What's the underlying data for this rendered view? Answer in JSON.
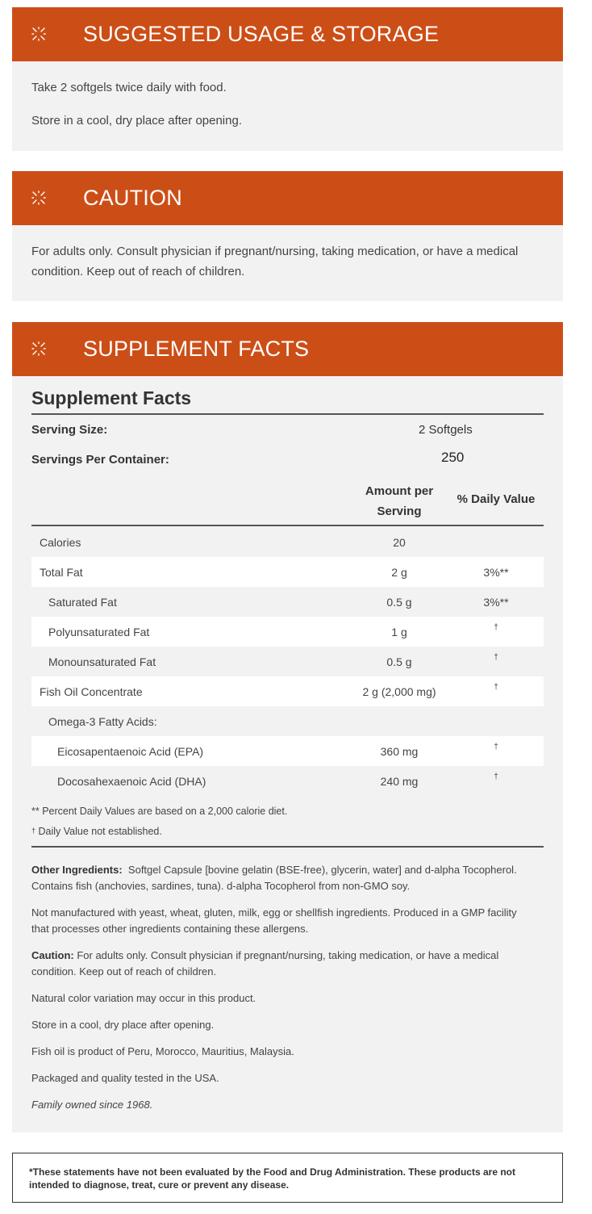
{
  "usage": {
    "title": "SUGGESTED USAGE & STORAGE",
    "icon": "sparkle-icon",
    "lines": [
      "Take 2 softgels twice daily with food.",
      "Store in a cool, dry place after opening."
    ]
  },
  "caution": {
    "title": "CAUTION",
    "icon": "sparkle-icon",
    "text": "For adults only. Consult physician if pregnant/nursing, taking medication, or have a medical condition. Keep out of reach of children."
  },
  "facts": {
    "title": "SUPPLEMENT FACTS",
    "icon": "sparkle-icon",
    "heading": "Supplement Facts",
    "serving_size_label": "Serving Size:",
    "serving_size_value": "2 Softgels",
    "servings_label": "Servings Per Container:",
    "servings_value": "250",
    "col_amount_line1": "Amount per",
    "col_amount_line2": "Serving",
    "col_dv": "% Daily Value",
    "rows": [
      {
        "name": "Calories",
        "amount": "20",
        "dv": "",
        "indent": 0
      },
      {
        "name": "Total Fat",
        "amount": "2 g",
        "dv": "3%**",
        "indent": 0
      },
      {
        "name": "Saturated Fat",
        "amount": "0.5 g",
        "dv": "3%**",
        "indent": 1
      },
      {
        "name": "Polyunsaturated Fat",
        "amount": "1 g",
        "dv": "†",
        "indent": 1
      },
      {
        "name": "Monounsaturated Fat",
        "amount": "0.5 g",
        "dv": "†",
        "indent": 1
      },
      {
        "name": "Fish Oil Concentrate",
        "amount": "2 g (2,000 mg)",
        "dv": "†",
        "indent": 0
      },
      {
        "name": "Omega-3 Fatty Acids:",
        "amount": "",
        "dv": "",
        "indent": 1
      },
      {
        "name": "Eicosapentaenoic Acid (EPA)",
        "amount": "360 mg",
        "dv": "†",
        "indent": 2
      },
      {
        "name": "Docosahexaenoic Acid (DHA)",
        "amount": "240 mg",
        "dv": "†",
        "indent": 2
      }
    ],
    "footnote_percent": "** Percent Daily Values are based on a 2,000 calorie diet.",
    "footnote_dagger_symbol": "†",
    "footnote_dagger": "Daily Value not established.",
    "other_ingredients_label": "Other Ingredients:",
    "other_ingredients": "Softgel Capsule [bovine gelatin (BSE-free), glycerin, water] and d-alpha Tocopherol. Contains fish (anchovies, sardines, tuna). d-alpha Tocopherol from non-GMO soy.",
    "allergen_note": "Not manufactured with yeast, wheat, gluten, milk, egg or shellfish ingredients. Produced in a GMP facility that processes other ingredients containing these allergens.",
    "caution_label": "Caution:",
    "caution_text": "For adults only. Consult physician if pregnant/nursing, taking medication, or have a medical condition. Keep out of reach of children.",
    "color_note": "Natural color variation may occur in this product.",
    "storage_note": "Store in a cool, dry place after opening.",
    "origin_note": "Fish oil is product of Peru, Morocco, Mauritius, Malaysia.",
    "tested_note": "Packaged and quality tested in the USA.",
    "family_note": "Family owned since 1968."
  },
  "disclaimer": "*These statements have not been evaluated by the Food and Drug Administration. These products are not intended to diagnose, treat, cure or prevent any disease.",
  "colors": {
    "header": "#cc4e17",
    "panel": "#f2f2f2"
  }
}
